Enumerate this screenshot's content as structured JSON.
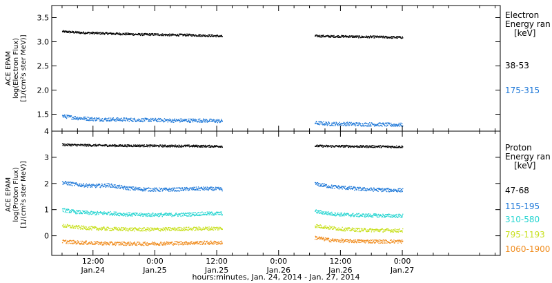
{
  "chart_data": [
    {
      "type": "scatter",
      "panel": "electron",
      "ylabel": [
        "ACE EPAM",
        "log(Electron Flux)",
        "[1/(cm²s ster MeV)]"
      ],
      "ylim": [
        1.15,
        3.75
      ],
      "yticks": [
        {
          "value": 1.5,
          "label": "1.5"
        },
        {
          "value": 2.0,
          "label": "2.0"
        },
        {
          "value": 2.5,
          "label": "2.5"
        },
        {
          "value": 3.0,
          "label": "3.0"
        },
        {
          "value": 3.5,
          "label": "3.5"
        }
      ],
      "legend": {
        "title": [
          "Electron",
          "Energy ran",
          "[keV]"
        ],
        "entries": [
          {
            "label": "38-53",
            "color": "#000000"
          },
          {
            "label": "175-315",
            "color": "#1e78d8"
          }
        ]
      },
      "series": [
        {
          "color": "#000000",
          "segments": [
            {
              "x": [
                0,
                3,
                6,
                9,
                12,
                15,
                18,
                21,
                24,
                27,
                30,
                31
              ],
              "y": [
                3.22,
                3.2,
                3.19,
                3.18,
                3.17,
                3.16,
                3.16,
                3.15,
                3.15,
                3.14,
                3.13,
                3.12
              ]
            },
            {
              "x": [
                49,
                52,
                55,
                58,
                61,
                64,
                66
              ],
              "y": [
                3.13,
                3.12,
                3.12,
                3.11,
                3.11,
                3.1,
                3.1
              ]
            }
          ]
        },
        {
          "color": "#1e78d8",
          "segments": [
            {
              "x": [
                0,
                3,
                6,
                9,
                12,
                15,
                18,
                21,
                24,
                27,
                30,
                31
              ],
              "y": [
                1.47,
                1.43,
                1.41,
                1.4,
                1.4,
                1.39,
                1.39,
                1.38,
                1.38,
                1.38,
                1.37,
                1.37
              ]
            },
            {
              "x": [
                49,
                52,
                55,
                58,
                61,
                64,
                66
              ],
              "y": [
                1.33,
                1.31,
                1.31,
                1.3,
                1.3,
                1.29,
                1.29
              ]
            }
          ]
        }
      ]
    },
    {
      "type": "scatter",
      "panel": "proton",
      "ylabel": [
        "ACE EPAM",
        "log(Proton Flux)",
        "[1/(cm²s ster MeV)]"
      ],
      "ylim": [
        -0.75,
        4.0
      ],
      "yticks": [
        {
          "value": 0,
          "label": "0"
        },
        {
          "value": 1,
          "label": "1"
        },
        {
          "value": 2,
          "label": "2"
        },
        {
          "value": 3,
          "label": "3"
        },
        {
          "value": 4,
          "label": "4"
        }
      ],
      "legend": {
        "title": [
          "Proton",
          "Energy ran",
          "[keV]"
        ],
        "entries": [
          {
            "label": "47-68",
            "color": "#000000"
          },
          {
            "label": "115-195",
            "color": "#1e78d8"
          },
          {
            "label": "310-580",
            "color": "#22d4d0"
          },
          {
            "label": "795-1193",
            "color": "#c8e01e"
          },
          {
            "label": "1060-1900",
            "color": "#f08c1e"
          }
        ]
      },
      "series": [
        {
          "color": "#000000",
          "segments": [
            {
              "x": [
                0,
                4,
                8,
                12,
                16,
                20,
                24,
                28,
                31
              ],
              "y": [
                3.5,
                3.48,
                3.47,
                3.46,
                3.46,
                3.45,
                3.45,
                3.44,
                3.44
              ]
            },
            {
              "x": [
                49,
                52,
                55,
                58,
                61,
                64,
                66
              ],
              "y": [
                3.45,
                3.44,
                3.44,
                3.43,
                3.43,
                3.42,
                3.42
              ]
            }
          ]
        },
        {
          "color": "#1e78d8",
          "segments": [
            {
              "x": [
                0,
                3,
                6,
                9,
                12,
                15,
                18,
                21,
                24,
                27,
                31
              ],
              "y": [
                2.05,
                1.97,
                1.92,
                1.95,
                1.85,
                1.8,
                1.78,
                1.78,
                1.8,
                1.82,
                1.8
              ]
            },
            {
              "x": [
                49,
                52,
                55,
                58,
                61,
                64,
                66
              ],
              "y": [
                2.0,
                1.9,
                1.85,
                1.8,
                1.78,
                1.76,
                1.76
              ]
            }
          ]
        },
        {
          "color": "#22d4d0",
          "segments": [
            {
              "x": [
                0,
                3,
                6,
                9,
                12,
                15,
                18,
                21,
                24,
                27,
                31
              ],
              "y": [
                1.0,
                0.92,
                0.88,
                0.88,
                0.84,
                0.82,
                0.82,
                0.82,
                0.83,
                0.86,
                0.87
              ]
            },
            {
              "x": [
                49,
                52,
                55,
                58,
                61,
                64,
                66
              ],
              "y": [
                0.95,
                0.86,
                0.82,
                0.8,
                0.79,
                0.78,
                0.78
              ]
            }
          ]
        },
        {
          "color": "#c8e01e",
          "segments": [
            {
              "x": [
                0,
                3,
                6,
                9,
                12,
                15,
                18,
                21,
                24,
                27,
                31
              ],
              "y": [
                0.4,
                0.34,
                0.3,
                0.28,
                0.27,
                0.26,
                0.26,
                0.27,
                0.28,
                0.29,
                0.3
              ]
            },
            {
              "x": [
                49,
                52,
                55,
                58,
                61,
                64,
                66
              ],
              "y": [
                0.4,
                0.32,
                0.26,
                0.24,
                0.23,
                0.22,
                0.22
              ]
            }
          ]
        },
        {
          "color": "#f08c1e",
          "segments": [
            {
              "x": [
                0,
                3,
                6,
                9,
                12,
                15,
                18,
                21,
                24,
                27,
                31
              ],
              "y": [
                -0.2,
                -0.24,
                -0.26,
                -0.28,
                -0.28,
                -0.29,
                -0.28,
                -0.27,
                -0.26,
                -0.25,
                -0.25
              ]
            },
            {
              "x": [
                49,
                52,
                55,
                58,
                61,
                64,
                66
              ],
              "y": [
                -0.05,
                -0.15,
                -0.18,
                -0.19,
                -0.2,
                -0.2,
                -0.2
              ]
            }
          ]
        }
      ]
    }
  ],
  "xaxis": {
    "xlim": [
      -2,
      85
    ],
    "ticks": [
      {
        "hour": 6,
        "line1": "12:00",
        "line2": "Jan.24"
      },
      {
        "hour": 18,
        "line1": "0:00",
        "line2": "Jan.25"
      },
      {
        "hour": 30,
        "line1": "12:00",
        "line2": "Jan.25"
      },
      {
        "hour": 42,
        "line1": "0:00",
        "line2": "Jan.26"
      },
      {
        "hour": 54,
        "line1": "12:00",
        "line2": "Jan.26"
      },
      {
        "hour": 66,
        "line1": "0:00",
        "line2": "Jan.27"
      }
    ],
    "label": "hours:minutes, Jan. 24, 2014 - Jan. 27, 2014"
  }
}
